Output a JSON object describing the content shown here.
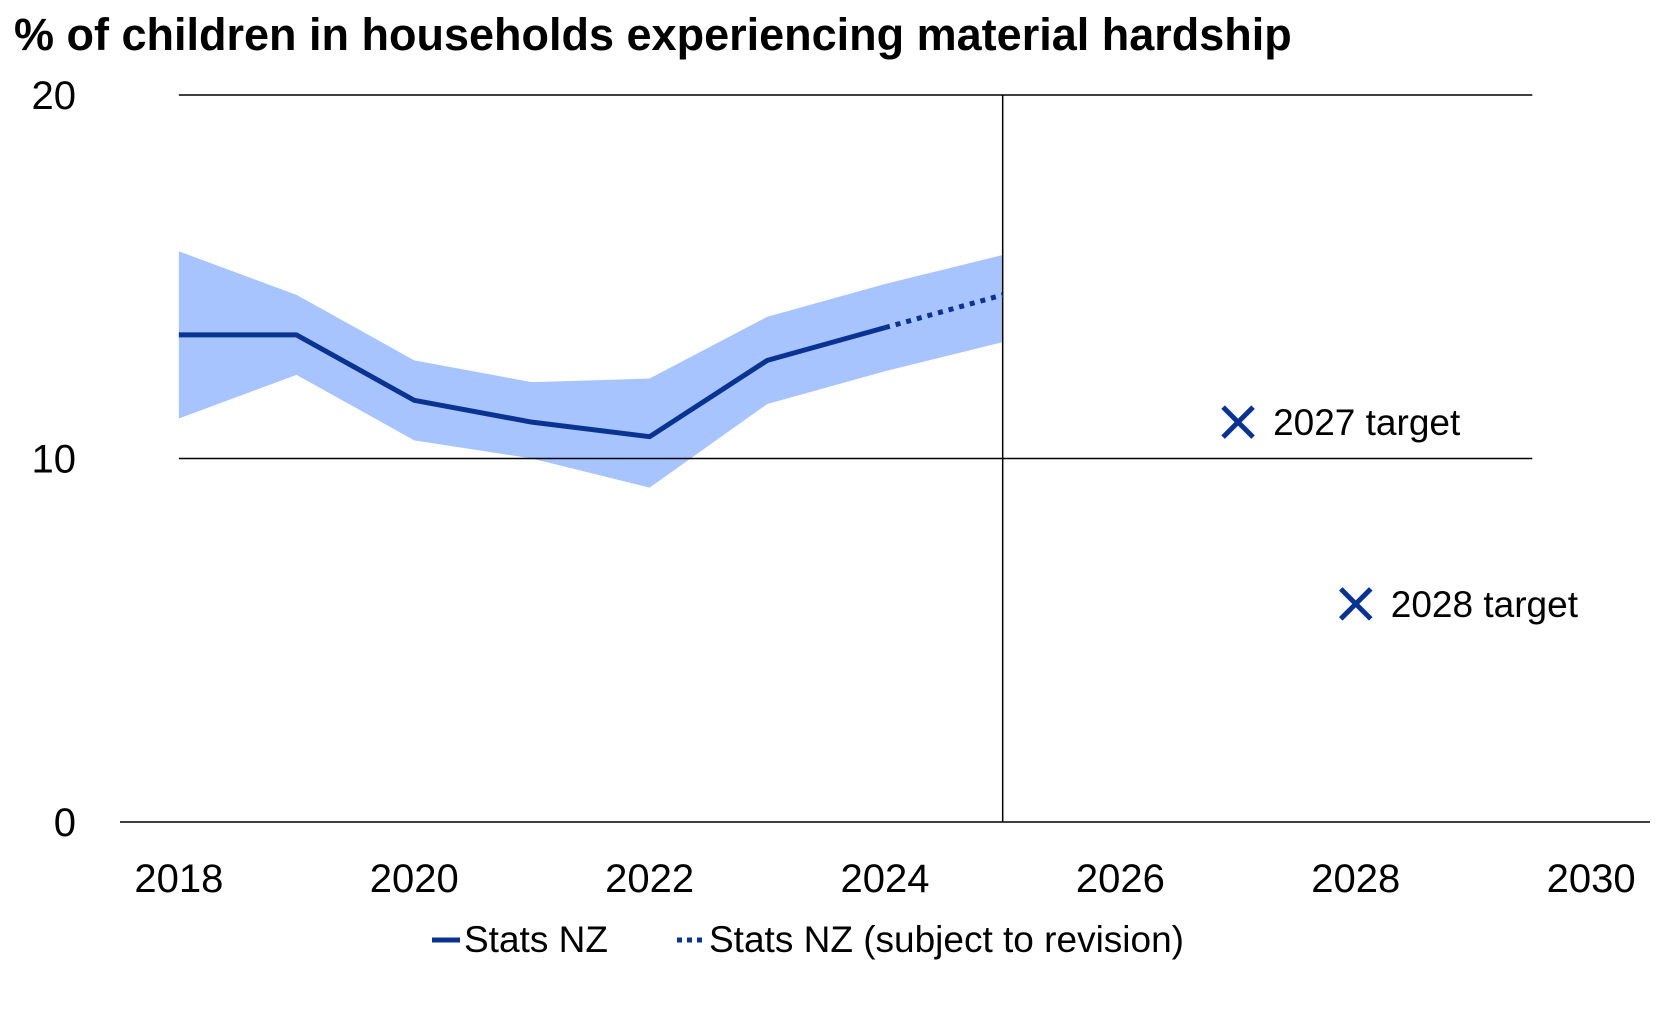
{
  "chart_data": {
    "type": "line",
    "title": "% of children in households experiencing material hardship",
    "xlabel": "",
    "ylabel": "",
    "xlim": [
      2017.5,
      2030.5
    ],
    "ylim": [
      0,
      20
    ],
    "x_ticks": [
      "2018",
      "2020",
      "2022",
      "2024",
      "2026",
      "2028",
      "2030"
    ],
    "y_ticks": [
      "0",
      "10",
      "20"
    ],
    "gridlines_y": [
      10,
      20
    ],
    "divider_x": 2025,
    "colors": {
      "line": "#0a3391",
      "band": "#a8c4ff",
      "marker": "#0a3391"
    },
    "series": [
      {
        "name": "Stats NZ",
        "style": "solid",
        "x": [
          2018,
          2019,
          2020,
          2021,
          2022,
          2023,
          2024
        ],
        "values": [
          13.4,
          13.4,
          11.6,
          11.0,
          10.6,
          12.7,
          13.6
        ]
      },
      {
        "name": "Stats NZ (subject to revision)",
        "style": "dotted",
        "x": [
          2024,
          2025
        ],
        "values": [
          13.6,
          14.5
        ]
      }
    ],
    "confidence_band": {
      "x": [
        2018,
        2019,
        2020,
        2021,
        2022,
        2023,
        2024,
        2025
      ],
      "lower": [
        11.1,
        12.3,
        10.5,
        10.0,
        9.2,
        11.5,
        12.4,
        13.2
      ],
      "upper": [
        15.7,
        14.5,
        12.7,
        12.1,
        12.2,
        13.9,
        14.8,
        15.6
      ]
    },
    "targets": [
      {
        "label": "2027 target",
        "x": 2027,
        "y": 11.0
      },
      {
        "label": "2028 target",
        "x": 2028,
        "y": 6.0
      }
    ],
    "legend": {
      "placement": "bottom",
      "entries": [
        {
          "label": "Stats NZ",
          "style": "solid"
        },
        {
          "label": "Stats NZ (subject to revision)",
          "style": "dotted"
        }
      ]
    }
  }
}
